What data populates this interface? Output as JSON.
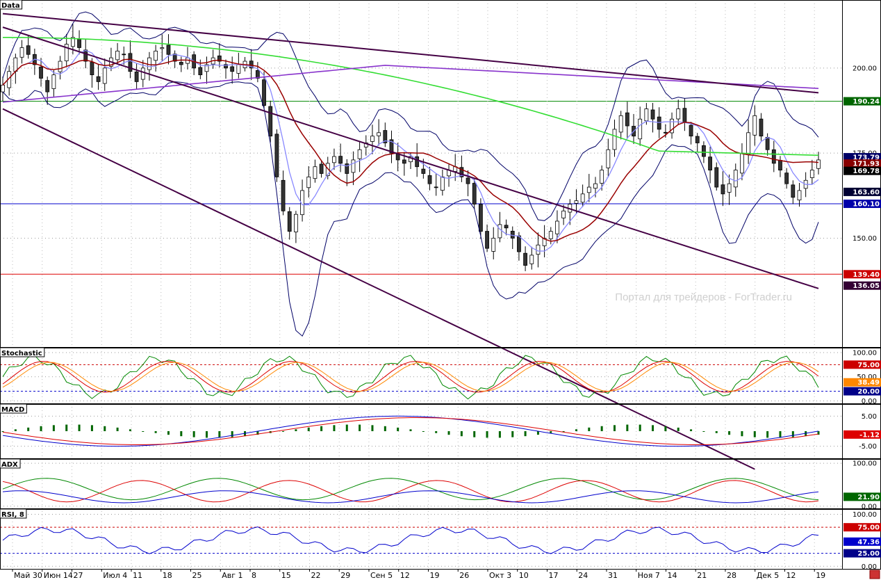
{
  "chart_data": {
    "type": "candlestick",
    "watermark": "Портал для трейдеров - ForTrader.ru",
    "x_axis": {
      "labels": [
        "Май 30",
        "Июн 14",
        "27",
        "Июл 4",
        "11",
        "18",
        "25",
        "Авг 1",
        "8",
        "15",
        "22",
        "29",
        "Сен 5",
        "12",
        "19",
        "26",
        "Окт 3",
        "10",
        "17",
        "24",
        "31",
        "Ноя 7",
        "14",
        "21",
        "28",
        "Дек 5",
        "12",
        "19"
      ]
    },
    "panels": [
      {
        "id": "price",
        "title": "Data",
        "ylim": [
          118,
          220
        ],
        "ticks": [
          "200.00",
          "175.00",
          "150.00"
        ],
        "tick_values": [
          200,
          175,
          150
        ],
        "price_labels": [
          {
            "text": "190.24",
            "value": 190.24,
            "bg": "#006600",
            "fg": "#ffffff"
          },
          {
            "text": "173.79",
            "value": 173.79,
            "bg": "#000066",
            "fg": "#ffffff"
          },
          {
            "text": "171.93",
            "value": 171.93,
            "bg": "#880000",
            "fg": "#ffffff"
          },
          {
            "text": "169.78",
            "value": 169.78,
            "bg": "#000000",
            "fg": "#ffffff"
          },
          {
            "text": "163.60",
            "value": 163.6,
            "bg": "#000033",
            "fg": "#ffffff"
          },
          {
            "text": "160.10",
            "value": 160.1,
            "bg": "#0000aa",
            "fg": "#ffffff"
          },
          {
            "text": "139.40",
            "value": 139.4,
            "bg": "#cc0000",
            "fg": "#ffffff"
          },
          {
            "text": "136.05",
            "value": 136.05,
            "bg": "#330033",
            "fg": "#ffffff"
          }
        ],
        "hlines": [
          {
            "value": 190.24,
            "color": "#008800"
          },
          {
            "value": 160.1,
            "color": "#0000cc"
          },
          {
            "value": 139.4,
            "color": "#dd0000"
          }
        ],
        "series_colors": {
          "ma_fast": "#8888ff",
          "ma_mid": "#990000",
          "ma_200": "#33dd33",
          "ma_long": "#8833cc",
          "bands": "#000066",
          "channel": "#440044"
        }
      },
      {
        "id": "stoch",
        "title": "Stochastic",
        "ylim": [
          -5,
          110
        ],
        "ticks": [
          "100.00",
          "50.00",
          "0.00"
        ],
        "tick_values": [
          100,
          50,
          0
        ],
        "levels": [
          {
            "value": 75,
            "color": "#cc0000"
          },
          {
            "value": 20,
            "color": "#0000cc"
          }
        ],
        "price_labels": [
          {
            "text": "75.00",
            "value": 75,
            "bg": "#cc0000",
            "fg": "#ffffff"
          },
          {
            "text": "38.49",
            "value": 38.49,
            "bg": "#ff8800",
            "fg": "#ffffff"
          },
          {
            "text": "20.00",
            "value": 20,
            "bg": "#000088",
            "fg": "#ffffff"
          }
        ]
      },
      {
        "id": "macd",
        "title": "MACD",
        "ylim": [
          -9,
          9
        ],
        "ticks": [
          "5.00",
          "-5.00"
        ],
        "tick_values": [
          5,
          -5
        ],
        "price_labels": [
          {
            "text": "-1.12",
            "value": -1.12,
            "bg": "#dd0000",
            "fg": "#ffffff"
          }
        ]
      },
      {
        "id": "adx",
        "title": "ADX",
        "ylim": [
          -5,
          110
        ],
        "ticks": [
          "100.00",
          "0.00"
        ],
        "tick_values": [
          100,
          0
        ],
        "price_labels": [
          {
            "text": "21.90",
            "value": 21.9,
            "bg": "#006600",
            "fg": "#ffffff"
          }
        ]
      },
      {
        "id": "rsi",
        "title": "RSI, 8",
        "ylim": [
          -5,
          110
        ],
        "ticks": [
          "100.00",
          "0.00"
        ],
        "tick_values": [
          100,
          0
        ],
        "levels": [
          {
            "value": 75,
            "color": "#cc0000"
          },
          {
            "value": 25,
            "color": "#0000cc"
          }
        ],
        "price_labels": [
          {
            "text": "75.00",
            "value": 75,
            "bg": "#cc0000",
            "fg": "#ffffff"
          },
          {
            "text": "47.36",
            "value": 47.36,
            "bg": "#0000cc",
            "fg": "#ffffff"
          },
          {
            "text": "25.00",
            "value": 25,
            "bg": "#000088",
            "fg": "#ffffff"
          }
        ]
      }
    ],
    "candles_close": [
      195,
      199,
      203,
      206,
      204,
      201,
      197,
      193,
      198,
      202,
      207,
      209,
      206,
      202,
      198,
      196,
      200,
      203,
      205,
      204,
      199,
      196,
      200,
      203,
      205,
      206,
      204,
      202,
      201,
      203,
      200,
      198,
      201,
      203,
      202,
      200,
      199,
      201,
      202,
      200,
      197,
      189,
      180,
      168,
      158,
      152,
      157,
      164,
      168,
      171,
      169,
      172,
      174,
      172,
      169,
      173,
      176,
      178,
      180,
      181,
      178,
      175,
      173,
      172,
      174,
      171,
      169,
      166,
      165,
      168,
      170,
      171,
      168,
      166,
      160,
      152,
      147,
      150,
      154,
      153,
      150,
      146,
      142,
      145,
      148,
      150,
      152,
      155,
      158,
      160,
      161,
      163,
      165,
      166,
      170,
      176,
      182,
      186,
      183,
      180,
      185,
      188,
      185,
      182,
      181,
      185,
      188,
      184,
      180,
      178,
      174,
      170,
      165,
      163,
      166,
      170,
      175,
      181,
      186,
      180,
      176,
      172,
      170,
      166,
      162,
      164,
      167,
      170,
      173
    ]
  }
}
